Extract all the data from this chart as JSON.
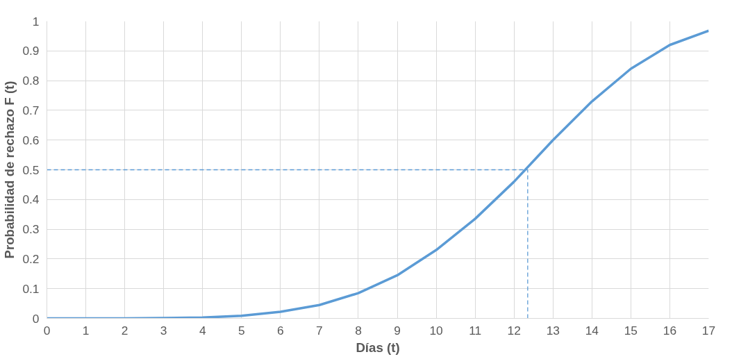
{
  "chart_data": {
    "type": "line",
    "xlabel": "Días (t)",
    "ylabel": "Probabilidad de rechazo F (t)",
    "x": [
      0,
      1,
      2,
      3,
      4,
      5,
      6,
      7,
      8,
      9,
      10,
      11,
      12,
      13,
      14,
      15,
      16,
      17
    ],
    "series": [
      {
        "color": "#5b9bd5",
        "values": [
          0,
          0,
          0,
          0.001,
          0.003,
          0.009,
          0.022,
          0.045,
          0.085,
          0.145,
          0.23,
          0.335,
          0.46,
          0.6,
          0.73,
          0.84,
          0.92,
          0.968
        ]
      }
    ],
    "xlim": [
      0,
      17
    ],
    "ylim": [
      0,
      1
    ],
    "xticks": [
      0,
      1,
      2,
      3,
      4,
      5,
      6,
      7,
      8,
      9,
      10,
      11,
      12,
      13,
      14,
      15,
      16,
      17
    ],
    "yticks": [
      0,
      0.1,
      0.2,
      0.3,
      0.4,
      0.5,
      0.6,
      0.7,
      0.8,
      0.9,
      1
    ],
    "ref_lines": [
      {
        "axis": "x",
        "value": 12.35,
        "color": "#5b9bd5",
        "line_style": "dashed"
      },
      {
        "axis": "y",
        "value": 0.5,
        "color": "#5b9bd5",
        "line_style": "dashed"
      }
    ],
    "grid": true,
    "marker": "none",
    "line_style": "solid"
  }
}
